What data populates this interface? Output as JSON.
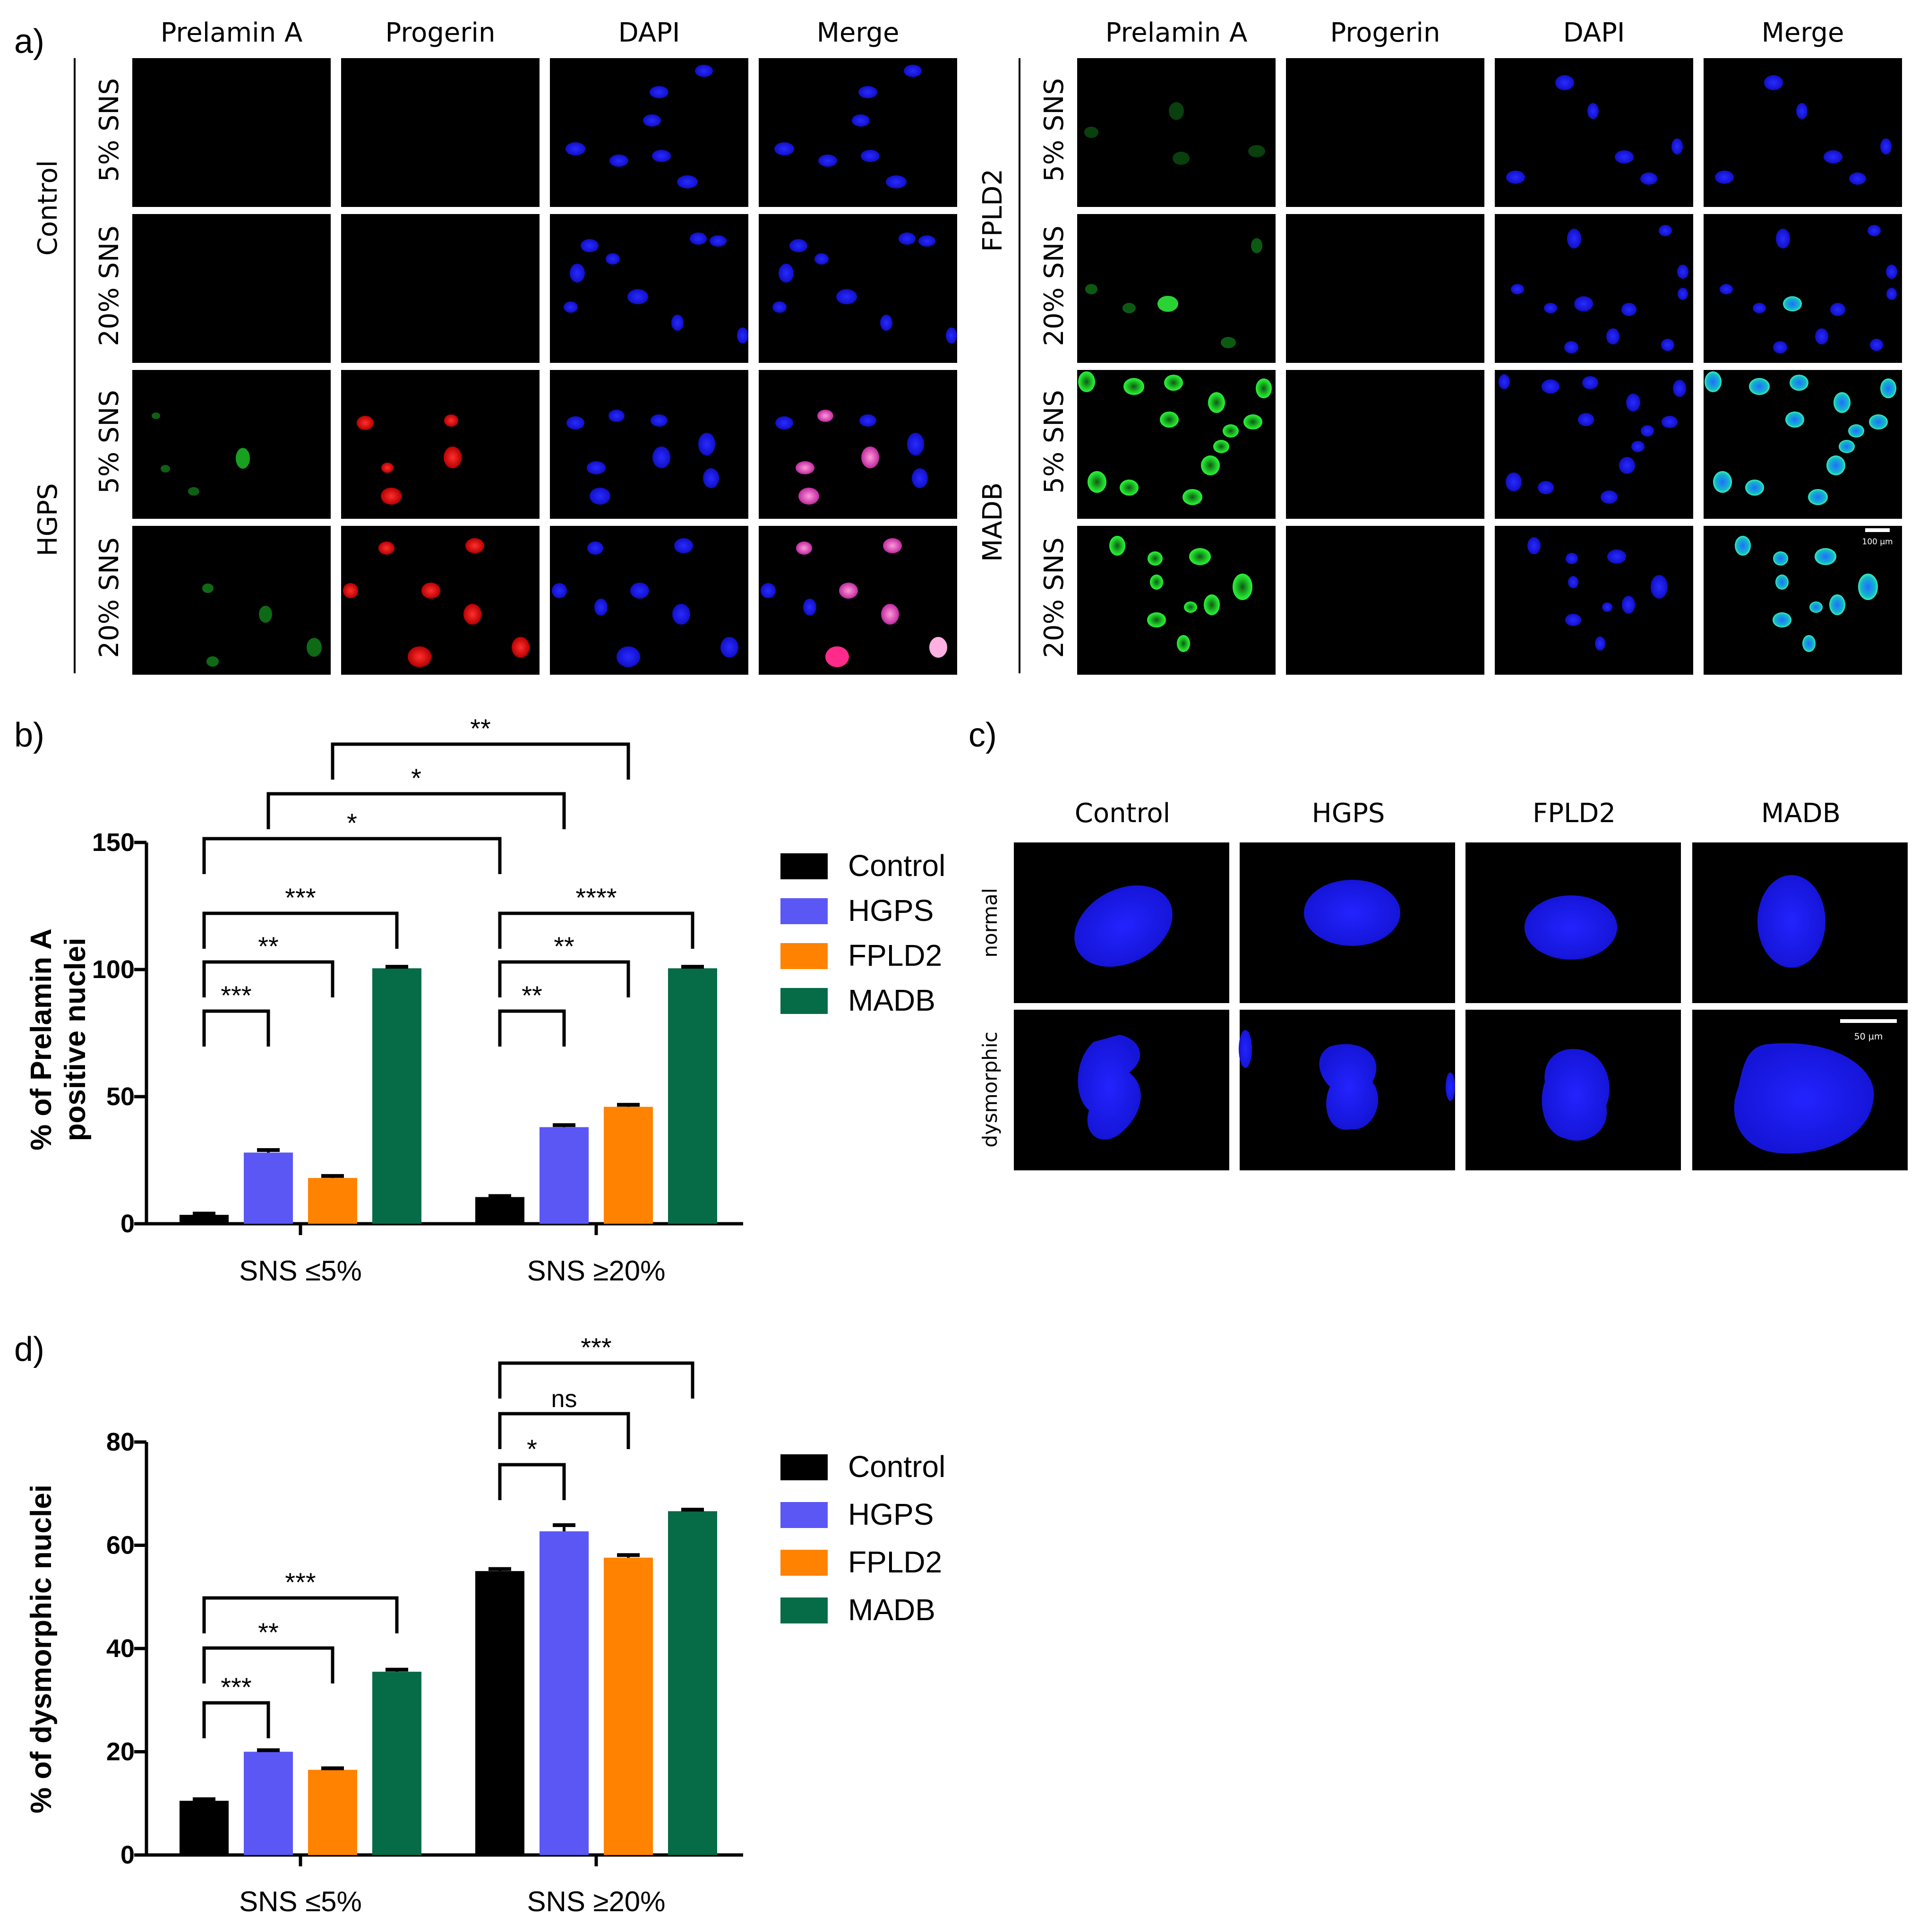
{
  "panel_labels": {
    "a": "a)",
    "b": "b)",
    "c": "c)",
    "d": "d)"
  },
  "panel_a": {
    "column_headers": [
      "Prelamin A",
      "Progerin",
      "DAPI",
      "Merge"
    ],
    "left_groups": [
      {
        "label": "Control",
        "rows": [
          "5% SNS",
          "20% SNS"
        ]
      },
      {
        "label": "HGPS",
        "rows": [
          "5% SNS",
          "20% SNS"
        ]
      }
    ],
    "right_groups": [
      {
        "label": "FPLD2",
        "rows": [
          "5% SNS",
          "20% SNS"
        ]
      },
      {
        "label": "MADB",
        "rows": [
          "5% SNS",
          "20% SNS"
        ]
      }
    ],
    "scale_bar": "100 µm",
    "colors": {
      "prelamin": "#1fd02a",
      "progerin": "#ff1a1a",
      "dapi": "#1a1aff",
      "background": "#000000"
    }
  },
  "panel_c": {
    "column_headers": [
      "Control",
      "HGPS",
      "FPLD2",
      "MADB"
    ],
    "row_labels": [
      "normal",
      "dysmorphic"
    ],
    "scale_bar": "50 µm"
  },
  "legend": [
    {
      "name": "Control",
      "color": "#000000"
    },
    {
      "name": "HGPS",
      "color": "#5a57f5"
    },
    {
      "name": "FPLD2",
      "color": "#ff8200"
    },
    {
      "name": "MADB",
      "color": "#066b47"
    }
  ],
  "chart_data": [
    {
      "panel": "b",
      "type": "bar",
      "categories": [
        "SNS ≤5%",
        "SNS ≥20%"
      ],
      "ylabel": [
        "% of Prelamin A",
        "positive nuclei"
      ],
      "ylim": [
        0,
        150
      ],
      "yticks": [
        0,
        50,
        100,
        150
      ],
      "series": [
        {
          "name": "Control",
          "values": [
            3.5,
            10.5
          ],
          "errors": [
            0.5,
            0.4
          ]
        },
        {
          "name": "HGPS",
          "values": [
            28,
            38
          ],
          "errors": [
            1.0,
            0.8
          ]
        },
        {
          "name": "FPLD2",
          "values": [
            18,
            46
          ],
          "errors": [
            0.8,
            0.8
          ]
        },
        {
          "name": "MADB",
          "values": [
            100.5,
            100.5
          ],
          "errors": [
            0.6,
            0.6
          ]
        }
      ],
      "significance": [
        {
          "from": [
            0,
            0
          ],
          "to": [
            0,
            1
          ],
          "label": "***"
        },
        {
          "from": [
            0,
            0
          ],
          "to": [
            0,
            2
          ],
          "label": "**"
        },
        {
          "from": [
            0,
            0
          ],
          "to": [
            0,
            3
          ],
          "label": "***"
        },
        {
          "from": [
            1,
            0
          ],
          "to": [
            1,
            1
          ],
          "label": "**"
        },
        {
          "from": [
            1,
            0
          ],
          "to": [
            1,
            2
          ],
          "label": "**"
        },
        {
          "from": [
            1,
            0
          ],
          "to": [
            1,
            3
          ],
          "label": "****"
        },
        {
          "from": [
            0,
            0
          ],
          "to": [
            1,
            0
          ],
          "label": "*"
        },
        {
          "from": [
            0,
            1
          ],
          "to": [
            1,
            1
          ],
          "label": "*"
        },
        {
          "from": [
            0,
            2
          ],
          "to": [
            1,
            2
          ],
          "label": "**"
        }
      ]
    },
    {
      "panel": "d",
      "type": "bar",
      "categories": [
        "SNS ≤5%",
        "SNS ≥20%"
      ],
      "ylabel": [
        "% of dysmorphic nuclei"
      ],
      "ylim": [
        0,
        80
      ],
      "yticks": [
        0,
        20,
        40,
        60,
        80
      ],
      "series": [
        {
          "name": "Control",
          "values": [
            10.5,
            55
          ],
          "errors": [
            0.3,
            0.4
          ]
        },
        {
          "name": "HGPS",
          "values": [
            20,
            62.7
          ],
          "errors": [
            0.3,
            1.2
          ]
        },
        {
          "name": "FPLD2",
          "values": [
            16.5,
            57.6
          ],
          "errors": [
            0.3,
            0.5
          ]
        },
        {
          "name": "MADB",
          "values": [
            35.5,
            66.6
          ],
          "errors": [
            0.4,
            0.3
          ]
        }
      ],
      "significance": [
        {
          "from": [
            0,
            0
          ],
          "to": [
            0,
            1
          ],
          "label": "***"
        },
        {
          "from": [
            0,
            0
          ],
          "to": [
            0,
            2
          ],
          "label": "**"
        },
        {
          "from": [
            0,
            0
          ],
          "to": [
            0,
            3
          ],
          "label": "***"
        },
        {
          "from": [
            1,
            0
          ],
          "to": [
            1,
            1
          ],
          "label": "*"
        },
        {
          "from": [
            1,
            0
          ],
          "to": [
            1,
            2
          ],
          "label": "ns"
        },
        {
          "from": [
            1,
            0
          ],
          "to": [
            1,
            3
          ],
          "label": "***"
        }
      ]
    }
  ]
}
